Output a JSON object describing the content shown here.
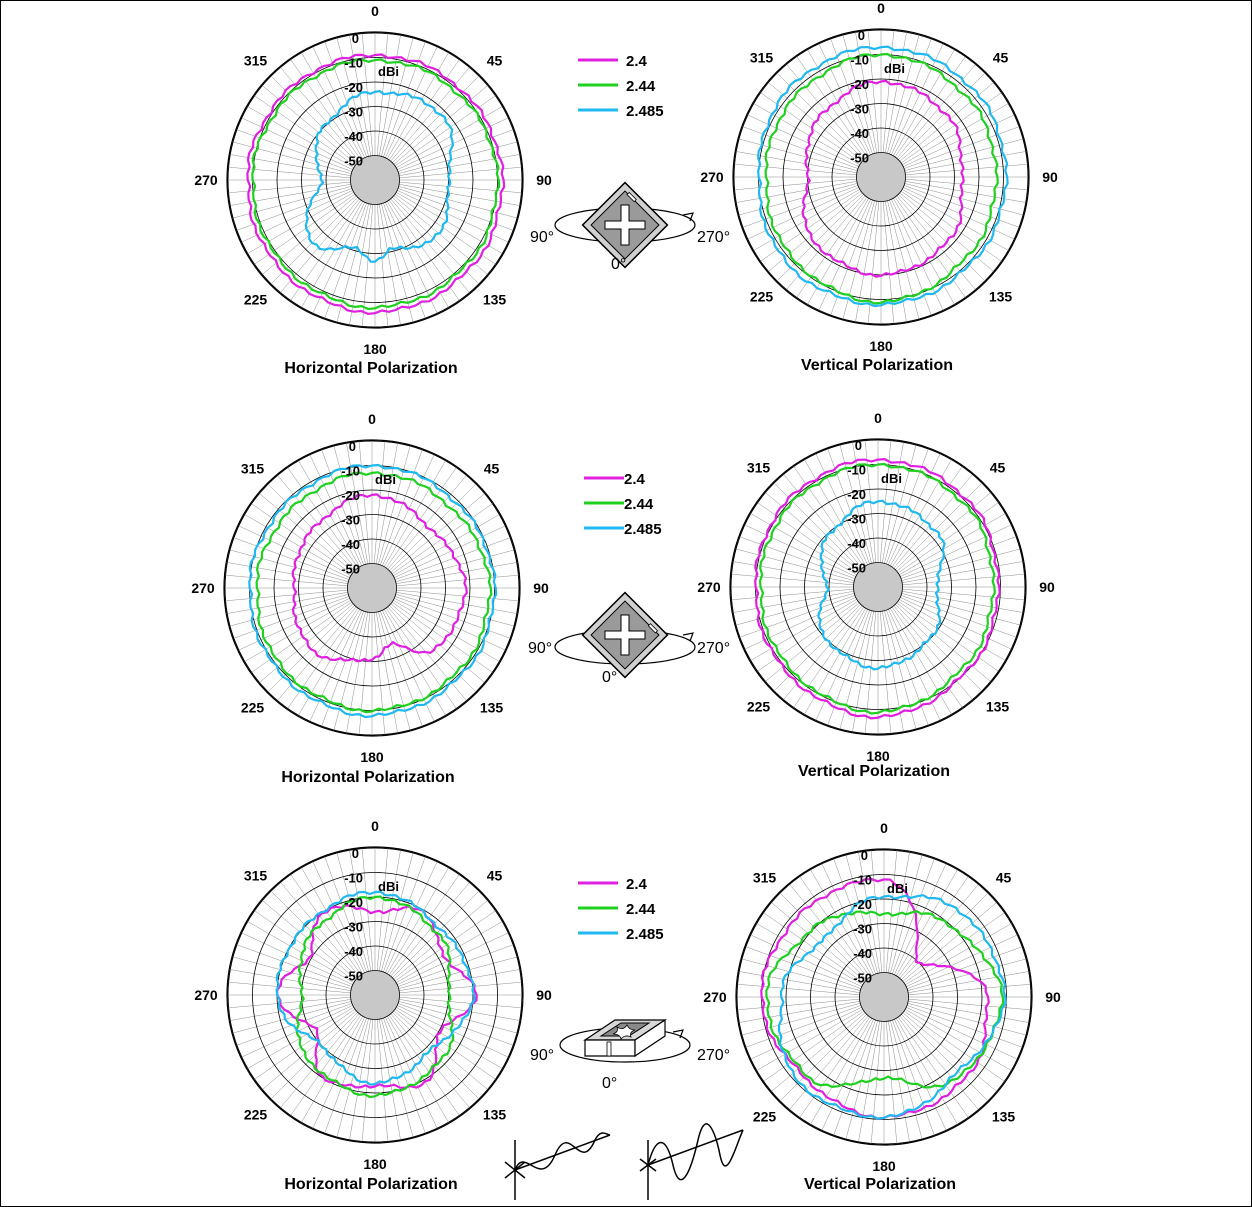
{
  "colors": {
    "f2_4": "#e020e0",
    "f2_44": "#20d020",
    "f2_485": "#20b8f0",
    "grid": "#000000",
    "center": "#c8c8c8"
  },
  "polar_common": {
    "unit": "dBi",
    "ring_labels": [
      "0",
      "-10",
      "-20",
      "-30",
      "-40",
      "-50"
    ],
    "angle_labels": [
      "0",
      "45",
      "90",
      "135",
      "180",
      "225",
      "270",
      "315"
    ]
  },
  "legend": [
    {
      "label": "2.4",
      "color": "#e020e0"
    },
    {
      "label": "2.44",
      "color": "#20d020"
    },
    {
      "label": "2.485",
      "color": "#20b8f0"
    }
  ],
  "orientation_labels": {
    "left": "90°",
    "right": "270°",
    "bottom": "0°"
  },
  "chart_data": [
    {
      "type": "polar-line",
      "title": "Horizontal Polarization",
      "rlim": [
        -60,
        0
      ],
      "angle_direction": "clockwise",
      "zero": "top",
      "series": [
        {
          "name": "2.4",
          "angles": [
            0,
            45,
            90,
            135,
            180,
            225,
            270,
            315
          ],
          "values": [
            -9,
            -9,
            -8,
            -7,
            -6,
            -7,
            -8,
            -9
          ]
        },
        {
          "name": "2.44",
          "angles": [
            0,
            45,
            90,
            135,
            180,
            225,
            270,
            315
          ],
          "values": [
            -11,
            -11,
            -10,
            -9,
            -8,
            -9,
            -10,
            -11
          ]
        },
        {
          "name": "2.485",
          "angles": [
            0,
            45,
            90,
            135,
            165,
            180,
            195,
            225,
            270,
            315
          ],
          "values": [
            -24,
            -22,
            -30,
            -26,
            -31,
            -27,
            -31,
            -24,
            -38,
            -30
          ]
        }
      ]
    },
    {
      "type": "polar-line",
      "title": "Vertical Polarization",
      "rlim": [
        -60,
        0
      ],
      "angle_direction": "clockwise",
      "zero": "top",
      "series": [
        {
          "name": "2.4",
          "angles": [
            0,
            45,
            90,
            135,
            180,
            225,
            270,
            315
          ],
          "values": [
            -21,
            -23,
            -27,
            -22,
            -20,
            -22,
            -30,
            -25
          ]
        },
        {
          "name": "2.44",
          "angles": [
            0,
            45,
            90,
            135,
            180,
            225,
            270,
            315
          ],
          "values": [
            -10,
            -12,
            -13,
            -12,
            -9,
            -11,
            -13,
            -12
          ]
        },
        {
          "name": "2.485",
          "angles": [
            0,
            45,
            90,
            135,
            180,
            225,
            270,
            315
          ],
          "values": [
            -7,
            -8,
            -9,
            -9,
            -8,
            -8,
            -10,
            -8
          ]
        }
      ]
    },
    {
      "type": "polar-line",
      "title": "Horizontal Polarization",
      "rlim": [
        -60,
        0
      ],
      "angle_direction": "clockwise",
      "zero": "top",
      "series": [
        {
          "name": "2.4",
          "angles": [
            0,
            45,
            90,
            135,
            160,
            180,
            225,
            270,
            315
          ],
          "values": [
            -22,
            -26,
            -22,
            -24,
            -36,
            -31,
            -25,
            -28,
            -26
          ]
        },
        {
          "name": "2.44",
          "angles": [
            0,
            45,
            90,
            135,
            180,
            225,
            270,
            315
          ],
          "values": [
            -13,
            -14,
            -12,
            -11,
            -10,
            -11,
            -13,
            -14
          ]
        },
        {
          "name": "2.485",
          "angles": [
            0,
            45,
            90,
            135,
            180,
            225,
            270,
            315
          ],
          "values": [
            -10,
            -11,
            -10,
            -9,
            -8,
            -9,
            -10,
            -11
          ]
        }
      ]
    },
    {
      "type": "polar-line",
      "title": "Vertical Polarization",
      "rlim": [
        -60,
        0
      ],
      "angle_direction": "clockwise",
      "zero": "top",
      "series": [
        {
          "name": "2.4",
          "angles": [
            0,
            45,
            90,
            135,
            180,
            225,
            270,
            315
          ],
          "values": [
            -8,
            -9,
            -11,
            -10,
            -7,
            -9,
            -10,
            -9
          ]
        },
        {
          "name": "2.44",
          "angles": [
            0,
            45,
            90,
            135,
            180,
            225,
            270,
            315
          ],
          "values": [
            -10,
            -11,
            -13,
            -12,
            -9,
            -11,
            -12,
            -11
          ]
        },
        {
          "name": "2.485",
          "angles": [
            0,
            45,
            90,
            135,
            180,
            225,
            270,
            315
          ],
          "values": [
            -25,
            -27,
            -36,
            -30,
            -27,
            -30,
            -39,
            -31
          ]
        }
      ]
    },
    {
      "type": "polar-line",
      "title": "Horizontal Polarization",
      "rlim": [
        -60,
        0
      ],
      "angle_direction": "clockwise",
      "zero": "top",
      "series": [
        {
          "name": "2.4",
          "angles": [
            0,
            30,
            60,
            90,
            120,
            150,
            180,
            210,
            240,
            270,
            300,
            330
          ],
          "values": [
            -26,
            -21,
            -28,
            -19,
            -30,
            -19,
            -23,
            -20,
            -32,
            -20,
            -29,
            -20
          ]
        },
        {
          "name": "2.44",
          "angles": [
            0,
            45,
            90,
            135,
            180,
            225,
            270,
            315
          ],
          "values": [
            -20,
            -24,
            -30,
            -22,
            -19,
            -22,
            -30,
            -24
          ]
        },
        {
          "name": "2.485",
          "angles": [
            0,
            45,
            90,
            135,
            180,
            225,
            270,
            315
          ],
          "values": [
            -18,
            -22,
            -20,
            -28,
            -24,
            -30,
            -20,
            -20
          ]
        }
      ]
    },
    {
      "type": "polar-line",
      "title": "Vertical Polarization",
      "rlim": [
        -60,
        0
      ],
      "angle_direction": "clockwise",
      "zero": "top",
      "series": [
        {
          "name": "2.4",
          "angles": [
            0,
            45,
            90,
            135,
            180,
            225,
            270,
            315
          ],
          "values": [
            -12,
            -40,
            -18,
            -13,
            -11,
            -14,
            -10,
            -12
          ]
        },
        {
          "name": "2.44",
          "angles": [
            0,
            45,
            90,
            135,
            180,
            225,
            270,
            315
          ],
          "values": [
            -26,
            -20,
            -12,
            -15,
            -27,
            -15,
            -12,
            -20
          ]
        },
        {
          "name": "2.485",
          "angles": [
            0,
            45,
            90,
            135,
            180,
            225,
            270,
            315
          ],
          "values": [
            -19,
            -13,
            -11,
            -17,
            -11,
            -11,
            -18,
            -26
          ]
        }
      ]
    }
  ]
}
